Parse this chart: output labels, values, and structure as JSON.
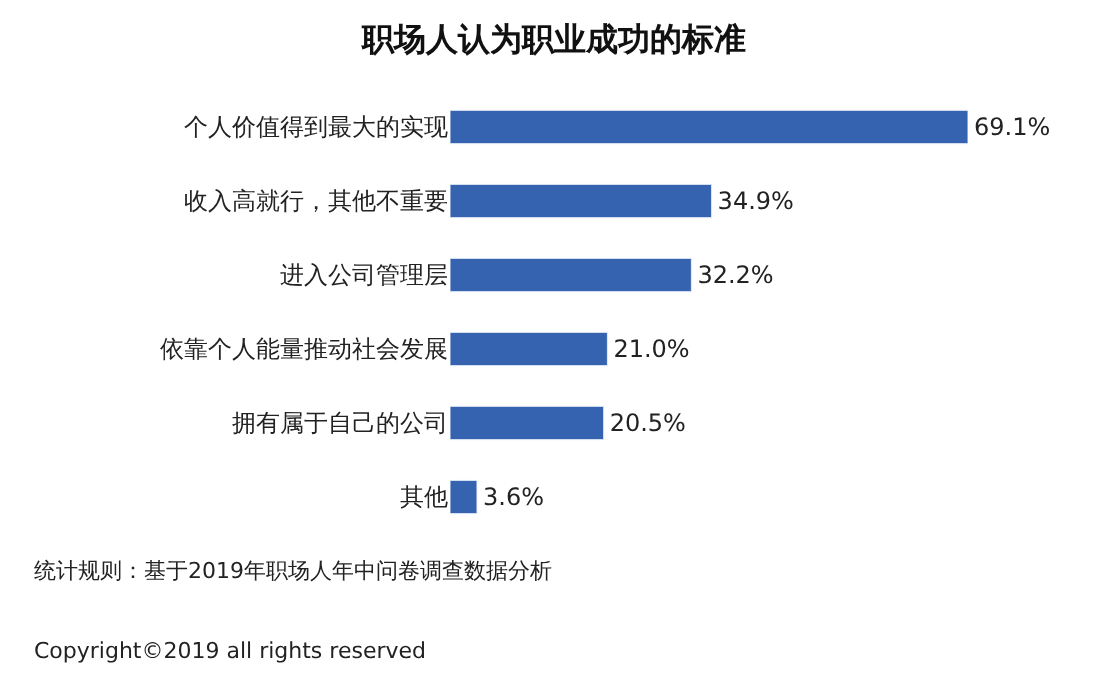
{
  "chart_data": {
    "type": "bar",
    "orientation": "horizontal",
    "title": "职场人认为职业成功的标准",
    "categories": [
      "个人价值得到最大的实现",
      "收入高就行，其他不重要",
      "进入公司管理层",
      "依靠个人能量推动社会发展",
      "拥有属于自己的公司",
      "其他"
    ],
    "values": [
      69.1,
      34.9,
      32.2,
      21.0,
      20.5,
      3.6
    ],
    "value_labels": [
      "69.1%",
      "34.9%",
      "32.2%",
      "21.0%",
      "20.5%",
      "3.6%"
    ],
    "color": "#3563b0",
    "tick_labels": "y",
    "annotations": [
      "统计规则：基于2019年职场人年中问卷调查数据分析",
      "Copyright©2019 all rights reserved"
    ]
  }
}
